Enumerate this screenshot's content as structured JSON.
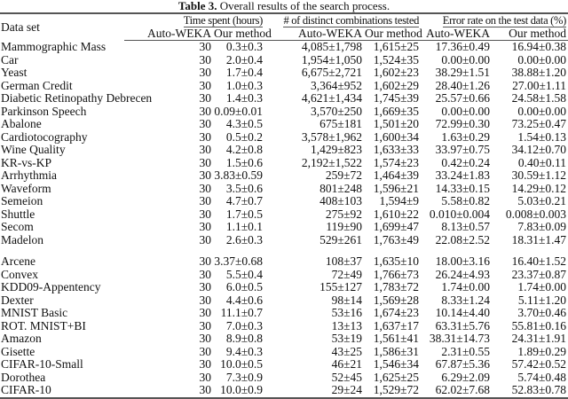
{
  "caption": {
    "label": "Table 3.",
    "text": "Overall results of the search process."
  },
  "header": {
    "dataset": "Data set",
    "groups": [
      "Time spent (hours)",
      "# of distinct combinations tested",
      "Error rate on the test data (%)"
    ],
    "sub": [
      "Auto-WEKA",
      "Our method",
      "Auto-WEKA",
      "Our method",
      "Auto-WEKA",
      "Our method"
    ]
  },
  "rows_a": [
    [
      "Mammographic Mass",
      "30",
      "0.3±0.3",
      "4,085±1,798",
      "1,615±25",
      "17.36±0.49",
      "16.94±0.38"
    ],
    [
      "Car",
      "30",
      "2.0±0.4",
      "1,954±1,050",
      "1,524±35",
      "0.00±0.00",
      "0.00±0.00"
    ],
    [
      "Yeast",
      "30",
      "1.7±0.4",
      "6,675±2,721",
      "1,602±23",
      "38.29±1.51",
      "38.88±1.20"
    ],
    [
      "German Credit",
      "30",
      "1.0±0.3",
      "3,364±952",
      "1,602±29",
      "28.40±1.26",
      "27.00±1.11"
    ],
    [
      "Diabetic Retinopathy Debrecen",
      "30",
      "1.4±0.3",
      "4,621±1,434",
      "1,745±39",
      "25.57±0.66",
      "24.58±1.58"
    ],
    [
      "Parkinson Speech",
      "30",
      "0.09±0.01",
      "3,570±250",
      "1,669±35",
      "0.00±0.00",
      "0.00±0.00"
    ],
    [
      "Abalone",
      "30",
      "4.3±0.5",
      "675±181",
      "1,501±20",
      "72.99±0.30",
      "73.25±0.47"
    ],
    [
      "Cardiotocography",
      "30",
      "0.5±0.2",
      "3,578±1,962",
      "1,600±34",
      "1.63±0.29",
      "1.54±0.13"
    ],
    [
      "Wine Quality",
      "30",
      "4.2±0.8",
      "1,429±823",
      "1,633±33",
      "33.97±0.75",
      "34.12±0.70"
    ],
    [
      "KR-vs-KP",
      "30",
      "1.5±0.6",
      "2,192±1,522",
      "1,574±23",
      "0.42±0.24",
      "0.40±0.11"
    ],
    [
      "Arrhythmia",
      "30",
      "3.83±0.59",
      "259±72",
      "1,464±39",
      "33.24±1.83",
      "30.59±1.12"
    ],
    [
      "Waveform",
      "30",
      "3.5±0.6",
      "801±248",
      "1,596±21",
      "14.33±0.15",
      "14.29±0.12"
    ],
    [
      "Semeion",
      "30",
      "4.7±0.7",
      "408±103",
      "1,594±9",
      "5.58±0.82",
      "5.03±0.21"
    ],
    [
      "Shuttle",
      "30",
      "1.7±0.5",
      "275±92",
      "1,610±22",
      "0.010±0.004",
      "0.008±0.003"
    ],
    [
      "Secom",
      "30",
      "1.1±0.1",
      "119±90",
      "1,699±47",
      "8.13±0.57",
      "7.83±0.09"
    ],
    [
      "Madelon",
      "30",
      "2.6±0.3",
      "529±261",
      "1,763±49",
      "22.08±2.52",
      "18.31±1.47"
    ]
  ],
  "rows_b": [
    [
      "Arcene",
      "30",
      "3.37±0.68",
      "108±37",
      "1,635±10",
      "18.00±3.16",
      "16.40±1.52"
    ],
    [
      "Convex",
      "30",
      "5.5±0.4",
      "72±49",
      "1,766±73",
      "26.24±4.93",
      "23.37±0.87"
    ],
    [
      "KDD09-Appentency",
      "30",
      "6.0±0.5",
      "155±127",
      "1,783±72",
      "1.74±0.00",
      "1.74±0.00"
    ],
    [
      "Dexter",
      "30",
      "4.4±0.6",
      "98±14",
      "1,569±28",
      "8.33±1.24",
      "5.11±1.20"
    ],
    [
      "MNIST Basic",
      "30",
      "11.1±0.7",
      "53±16",
      "1,674±23",
      "10.14±4.40",
      "3.70±0.46"
    ],
    [
      "ROT. MNIST+BI",
      "30",
      "7.0±0.3",
      "13±13",
      "1,637±17",
      "63.31±5.76",
      "55.81±0.16"
    ],
    [
      "Amazon",
      "30",
      "8.9±0.8",
      "53±19",
      "1,561±41",
      "38.31±14.73",
      "24.31±1.91"
    ],
    [
      "Gisette",
      "30",
      "9.4±0.3",
      "43±25",
      "1,586±31",
      "2.31±0.55",
      "1.89±0.29"
    ],
    [
      "CIFAR-10-Small",
      "30",
      "10.0±0.5",
      "46±21",
      "1,546±34",
      "67.87±5.36",
      "57.42±0.52"
    ],
    [
      "Dorothea",
      "30",
      "7.3±0.9",
      "52±45",
      "1,625±25",
      "6.29±2.09",
      "5.74±0.48"
    ],
    [
      "CIFAR-10",
      "30",
      "10.0±0.9",
      "29±24",
      "1,529±72",
      "62.02±7.68",
      "52.83±0.78"
    ]
  ]
}
